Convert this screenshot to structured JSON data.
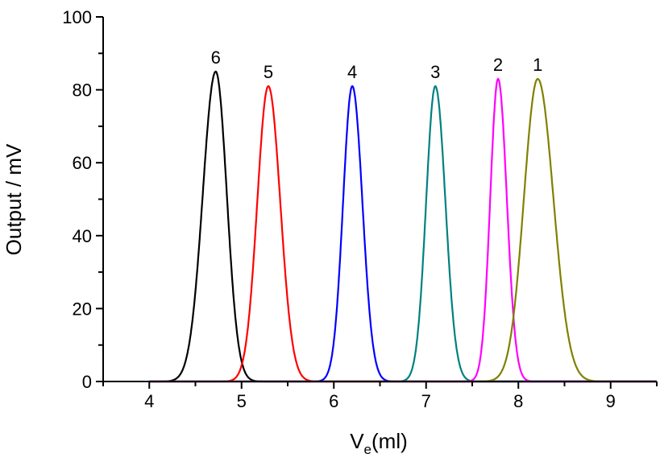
{
  "chart_data": {
    "type": "line",
    "title": "",
    "xlabel_main": "V",
    "xlabel_sub": "e",
    "xlabel_rest": "(ml)",
    "ylabel": "Output / mV",
    "xlim": [
      3.5,
      9.5
    ],
    "ylim": [
      0,
      100
    ],
    "xticks": [
      4,
      5,
      6,
      7,
      8,
      9
    ],
    "yticks": [
      0,
      20,
      40,
      60,
      80,
      100
    ],
    "grid": false,
    "series": [
      {
        "name": "6",
        "color": "#000000",
        "center": 4.72,
        "peak": 85,
        "sigma_left": 0.14,
        "sigma_right": 0.12
      },
      {
        "name": "5",
        "color": "#ff0000",
        "center": 5.29,
        "peak": 81,
        "sigma_left": 0.12,
        "sigma_right": 0.13
      },
      {
        "name": "4",
        "color": "#0000ff",
        "center": 6.2,
        "peak": 81,
        "sigma_left": 0.1,
        "sigma_right": 0.11
      },
      {
        "name": "3",
        "color": "#008080",
        "center": 7.1,
        "peak": 81,
        "sigma_left": 0.1,
        "sigma_right": 0.11
      },
      {
        "name": "2",
        "color": "#ff00ff",
        "center": 7.78,
        "peak": 83,
        "sigma_left": 0.085,
        "sigma_right": 0.095
      },
      {
        "name": "1",
        "color": "#808000",
        "center": 8.21,
        "peak": 83,
        "sigma_left": 0.15,
        "sigma_right": 0.17
      }
    ]
  }
}
